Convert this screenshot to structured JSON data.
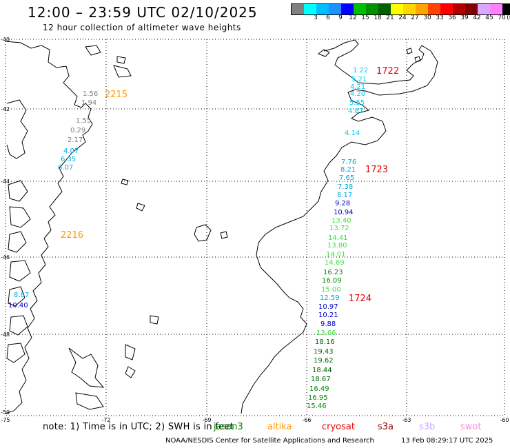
{
  "header": {
    "title": "12:00 – 23:59 UTC 02/10/2025",
    "subtitle": "12 hour collection of altimeter wave heights"
  },
  "legend": {
    "unit": "(ft)",
    "swatches": [
      {
        "label": "",
        "color": "#808080"
      },
      {
        "label": "3",
        "color": "#00ffff"
      },
      {
        "label": "6",
        "color": "#00bfff"
      },
      {
        "label": "9",
        "color": "#1e90ff"
      },
      {
        "label": "12",
        "color": "#0000ff"
      },
      {
        "label": "15",
        "color": "#00c000"
      },
      {
        "label": "18",
        "color": "#009000"
      },
      {
        "label": "21",
        "color": "#006000"
      },
      {
        "label": "24",
        "color": "#ffff00"
      },
      {
        "label": "27",
        "color": "#ffd700"
      },
      {
        "label": "30",
        "color": "#ffa500"
      },
      {
        "label": "33",
        "color": "#ff4500"
      },
      {
        "label": "36",
        "color": "#ff0000"
      },
      {
        "label": "39",
        "color": "#b00000"
      },
      {
        "label": "42",
        "color": "#800000"
      },
      {
        "label": "45",
        "color": "#d8a8ff"
      },
      {
        "label": "70",
        "color": "#ff80ff"
      },
      {
        "label": "",
        "color": "#000000"
      }
    ]
  },
  "axes": {
    "lat_labels": [
      "-40",
      "-42",
      "-44",
      "-46",
      "-48",
      "-50"
    ],
    "lon_labels": [
      "-75",
      "-72",
      "-69",
      "-66",
      "-63",
      "-60"
    ]
  },
  "passes": [
    {
      "id": "2215",
      "color": "#ff9900",
      "position": "upper-left"
    },
    {
      "id": "2216",
      "color": "#ff9900",
      "position": "middle-left"
    },
    {
      "id": "1722",
      "color": "#ee0000",
      "position": "upper-right"
    },
    {
      "id": "1723",
      "color": "#ee0000",
      "position": "middle-right"
    },
    {
      "id": "1724",
      "color": "#ee0000",
      "position": "lower-right"
    }
  ],
  "track_west": {
    "values": [
      {
        "v": "1.56",
        "color": "#808080"
      },
      {
        "v": "1.94",
        "color": "#808080"
      },
      {
        "v": "1.55",
        "color": "#808080"
      },
      {
        "v": "0.29",
        "color": "#808080"
      },
      {
        "v": "2.17",
        "color": "#808080"
      },
      {
        "v": "4.07",
        "color": "#00aadd"
      },
      {
        "v": "6.35",
        "color": "#00aadd"
      },
      {
        "v": "6.07",
        "color": "#00aadd"
      },
      {
        "v": "8.87",
        "color": "#00aadd"
      },
      {
        "v": "10.40",
        "color": "#0000cc"
      }
    ]
  },
  "track_east": {
    "values": [
      {
        "v": "1.22",
        "color": "#00ccee"
      },
      {
        "v": "5.21",
        "color": "#00ccee"
      },
      {
        "v": "4.21",
        "color": "#00ccee"
      },
      {
        "v": "4.20",
        "color": "#00ccee"
      },
      {
        "v": "5.55",
        "color": "#00ccee"
      },
      {
        "v": "4.87",
        "color": "#00ccee"
      },
      {
        "v": "4.14",
        "color": "#00ccee"
      },
      {
        "v": "7.76",
        "color": "#00aadd"
      },
      {
        "v": "8.21",
        "color": "#00aadd"
      },
      {
        "v": "7.65",
        "color": "#00aadd"
      },
      {
        "v": "7.38",
        "color": "#00aadd"
      },
      {
        "v": "8.17",
        "color": "#00aadd"
      },
      {
        "v": "9.28",
        "color": "#0000cc"
      },
      {
        "v": "10.94",
        "color": "#0000cc"
      },
      {
        "v": "13.40",
        "color": "#44dd44"
      },
      {
        "v": "13.72",
        "color": "#44dd44"
      },
      {
        "v": "14.41",
        "color": "#44dd44"
      },
      {
        "v": "13.80",
        "color": "#44dd44"
      },
      {
        "v": "14.01",
        "color": "#44dd44"
      },
      {
        "v": "14.69",
        "color": "#44dd44"
      },
      {
        "v": "16.23",
        "color": "#008800"
      },
      {
        "v": "16.09",
        "color": "#008800"
      },
      {
        "v": "15.00",
        "color": "#44dd44"
      },
      {
        "v": "12.59",
        "color": "#00aadd"
      },
      {
        "v": "10.97",
        "color": "#0000cc"
      },
      {
        "v": "10.21",
        "color": "#0000cc"
      },
      {
        "v": "9.88",
        "color": "#0000cc"
      },
      {
        "v": "13.66",
        "color": "#44dd44"
      },
      {
        "v": "18.16",
        "color": "#006600"
      },
      {
        "v": "19.43",
        "color": "#006600"
      },
      {
        "v": "19.62",
        "color": "#006600"
      },
      {
        "v": "18.44",
        "color": "#006600"
      },
      {
        "v": "18.67",
        "color": "#006600"
      },
      {
        "v": "16.49",
        "color": "#008800"
      },
      {
        "v": "16.95",
        "color": "#008800"
      },
      {
        "v": "15.46",
        "color": "#008800"
      }
    ]
  },
  "footer": {
    "note": "note:  1) Time is in UTC; 2) SWH is in feet",
    "satellites": [
      {
        "name": "jason3",
        "color": "#008800"
      },
      {
        "name": "altika",
        "color": "#ff9900"
      },
      {
        "name": "cryosat",
        "color": "#ee0000"
      },
      {
        "name": "s3a",
        "color": "#990000"
      },
      {
        "name": "s3b",
        "color": "#c8a8ff"
      },
      {
        "name": "swot",
        "color": "#ff88dd"
      }
    ],
    "credit": "NOAA/NESDIS Center for Satellite Applications and Research",
    "timestamp": "13 Feb 08:29:17 UTC 2025"
  }
}
